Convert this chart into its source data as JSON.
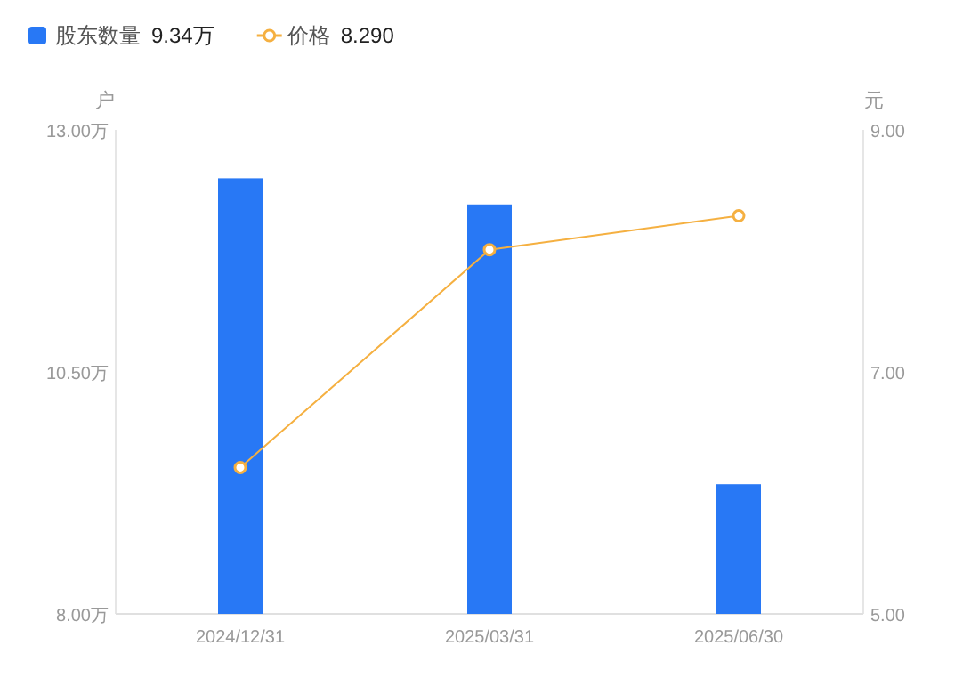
{
  "chart_data": {
    "type": "bar",
    "ylabel": "户",
    "y2label": "元",
    "categories": [
      "2024/12/31",
      "2025/03/31",
      "2025/06/30"
    ],
    "series": [
      {
        "name": "股东数量",
        "color": "#2878f5",
        "values": [
          12.5,
          12.23,
          9.34
        ]
      },
      {
        "name": "价格",
        "type": "line",
        "axis": "y2",
        "color": "#f5b041",
        "marker": "circle",
        "values": [
          6.21,
          8.01,
          8.29
        ]
      }
    ],
    "ylim": [
      8,
      13
    ],
    "yticks": [
      {
        "value": 8,
        "label": "8.00万"
      },
      {
        "value": 10.5,
        "label": "10.50万"
      },
      {
        "value": 13,
        "label": "13.00万"
      }
    ],
    "y2lim": [
      5,
      9
    ],
    "y2ticks": [
      {
        "value": 5,
        "label": "5.00"
      },
      {
        "value": 7,
        "label": "7.00"
      },
      {
        "value": 9,
        "label": "9.00"
      }
    ],
    "legend": "top left",
    "annotations": [
      "9.34万",
      "8.290"
    ]
  }
}
